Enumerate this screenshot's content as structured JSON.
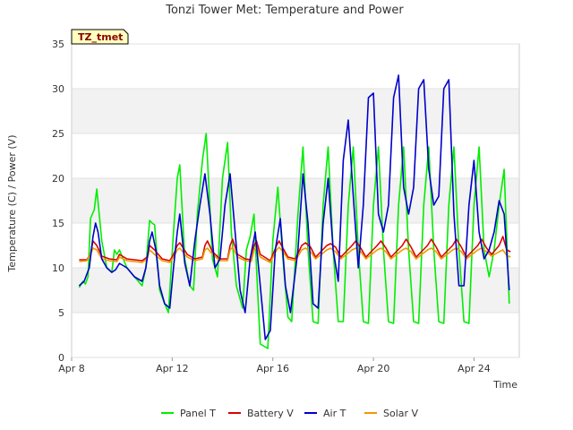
{
  "chart_data": {
    "type": "line",
    "title": "Tonzi Tower Met: Temperature and Power",
    "badge": "TZ_tmet",
    "xlabel": "Time",
    "ylabel": "Temperature (C) / Power (V)",
    "xlim": [
      8,
      25.8
    ],
    "ylim": [
      0,
      35
    ],
    "yticks": [
      0,
      5,
      10,
      15,
      20,
      25,
      30,
      35
    ],
    "xticks": [
      {
        "value": 8,
        "label": "Apr 8"
      },
      {
        "value": 12,
        "label": "Apr 12"
      },
      {
        "value": 16,
        "label": "Apr 16"
      },
      {
        "value": 20,
        "label": "Apr 20"
      },
      {
        "value": 24,
        "label": "Apr 24"
      }
    ],
    "grid": true,
    "legend_position": "bottom",
    "series": [
      {
        "name": "Panel T",
        "color": "#00ee00",
        "x": [
          8.3,
          8.45,
          8.55,
          8.65,
          8.75,
          8.9,
          9.0,
          9.2,
          9.4,
          9.6,
          9.7,
          9.8,
          9.9,
          10.2,
          10.5,
          10.8,
          10.95,
          11.1,
          11.2,
          11.3,
          11.5,
          11.7,
          11.85,
          12.05,
          12.2,
          12.3,
          12.5,
          12.7,
          12.85,
          13.0,
          13.2,
          13.35,
          13.6,
          13.8,
          14.0,
          14.2,
          14.35,
          14.55,
          14.8,
          14.95,
          15.1,
          15.25,
          15.35,
          15.5,
          15.8,
          16.0,
          16.2,
          16.4,
          16.6,
          16.75,
          17.0,
          17.2,
          17.4,
          17.6,
          17.8,
          18.0,
          18.2,
          18.4,
          18.6,
          18.8,
          19.0,
          19.2,
          19.4,
          19.6,
          19.8,
          20.0,
          20.2,
          20.4,
          20.6,
          20.8,
          21.0,
          21.2,
          21.4,
          21.6,
          21.8,
          22.0,
          22.2,
          22.4,
          22.6,
          22.8,
          23.0,
          23.2,
          23.4,
          23.6,
          23.8,
          24.0,
          24.2,
          24.4,
          24.6,
          24.8,
          25.0,
          25.2,
          25.4
        ],
        "values": [
          7.8,
          8.5,
          8.2,
          9.0,
          15.5,
          16.5,
          18.8,
          13.0,
          10.0,
          9.5,
          12.0,
          11.5,
          12.0,
          10.0,
          9.0,
          8.0,
          10.0,
          15.3,
          15.0,
          14.8,
          7.5,
          6.0,
          5.0,
          14.0,
          20.0,
          21.5,
          11.0,
          8.0,
          7.5,
          16.0,
          22.0,
          25.0,
          11.0,
          9.0,
          20.0,
          24.0,
          14.0,
          8.0,
          5.5,
          12.0,
          13.5,
          16.0,
          10.0,
          1.5,
          1.0,
          13.0,
          19.0,
          11.0,
          4.5,
          4.0,
          16.0,
          23.5,
          12.0,
          4.0,
          3.8,
          17.0,
          23.5,
          12.0,
          4.0,
          4.0,
          17.0,
          23.5,
          12.0,
          4.0,
          3.8,
          17.0,
          23.5,
          12.0,
          4.0,
          3.8,
          17.0,
          23.5,
          12.0,
          4.0,
          3.8,
          17.0,
          23.5,
          12.0,
          4.0,
          3.8,
          17.0,
          23.5,
          12.0,
          4.0,
          3.8,
          17.0,
          23.5,
          12.0,
          9.0,
          12.0,
          17.0,
          21.0,
          6.0
        ]
      },
      {
        "name": "Battery V",
        "color": "#dd0000",
        "x": [
          8.3,
          8.6,
          8.75,
          8.85,
          9.0,
          9.2,
          9.5,
          9.8,
          9.9,
          10.2,
          10.5,
          10.8,
          11.0,
          11.1,
          11.3,
          11.6,
          11.9,
          12.05,
          12.2,
          12.3,
          12.6,
          12.9,
          13.2,
          13.3,
          13.4,
          13.6,
          13.9,
          14.2,
          14.3,
          14.4,
          14.6,
          14.9,
          15.15,
          15.25,
          15.35,
          15.5,
          15.9,
          16.15,
          16.25,
          16.4,
          16.6,
          16.9,
          17.15,
          17.3,
          17.5,
          17.7,
          18.15,
          18.3,
          18.5,
          18.7,
          19.15,
          19.3,
          19.5,
          19.7,
          20.15,
          20.3,
          20.5,
          20.7,
          21.15,
          21.3,
          21.5,
          21.7,
          22.15,
          22.3,
          22.5,
          22.7,
          23.15,
          23.3,
          23.5,
          23.7,
          24.15,
          24.3,
          24.5,
          24.7,
          25.0,
          25.15,
          25.3,
          25.45
        ],
        "values": [
          10.9,
          10.9,
          11.5,
          13.0,
          12.5,
          11.3,
          11.0,
          10.9,
          11.5,
          11.0,
          10.9,
          10.8,
          11.2,
          12.5,
          12.0,
          11.0,
          10.8,
          11.5,
          12.5,
          12.8,
          11.5,
          11.0,
          11.2,
          12.5,
          13.0,
          11.8,
          11.0,
          11.0,
          12.5,
          13.2,
          11.5,
          11.0,
          10.9,
          12.5,
          13.0,
          11.5,
          10.8,
          12.5,
          13.0,
          12.2,
          11.2,
          11.0,
          12.5,
          12.8,
          12.3,
          11.2,
          12.5,
          12.7,
          12.3,
          11.2,
          12.5,
          13.0,
          12.2,
          11.2,
          12.5,
          13.0,
          12.2,
          11.2,
          12.5,
          13.2,
          12.3,
          11.2,
          12.5,
          13.2,
          12.3,
          11.2,
          12.5,
          13.2,
          12.3,
          11.2,
          12.5,
          13.2,
          12.2,
          11.5,
          12.5,
          13.5,
          12.0,
          11.8
        ]
      },
      {
        "name": "Air T",
        "color": "#0000cc",
        "x": [
          8.3,
          8.5,
          8.7,
          8.85,
          8.95,
          9.05,
          9.2,
          9.4,
          9.6,
          9.75,
          9.9,
          10.2,
          10.5,
          10.8,
          10.95,
          11.1,
          11.2,
          11.35,
          11.5,
          11.7,
          11.9,
          12.05,
          12.2,
          12.3,
          12.5,
          12.7,
          12.9,
          13.1,
          13.3,
          13.5,
          13.7,
          13.9,
          14.1,
          14.3,
          14.5,
          14.7,
          14.9,
          15.1,
          15.3,
          15.5,
          15.7,
          15.9,
          16.1,
          16.3,
          16.5,
          16.7,
          17.0,
          17.2,
          17.4,
          17.6,
          17.8,
          18.0,
          18.2,
          18.4,
          18.6,
          18.8,
          19.0,
          19.2,
          19.4,
          19.6,
          19.8,
          20.0,
          20.2,
          20.4,
          20.6,
          20.8,
          21.0,
          21.2,
          21.4,
          21.6,
          21.8,
          22.0,
          22.2,
          22.4,
          22.6,
          22.8,
          23.0,
          23.2,
          23.4,
          23.6,
          23.8,
          24.0,
          24.2,
          24.4,
          24.6,
          24.8,
          25.0,
          25.2,
          25.4
        ],
        "values": [
          8.0,
          8.5,
          10.0,
          13.5,
          15.0,
          14.0,
          11.0,
          10.0,
          9.5,
          9.8,
          10.5,
          10.0,
          9.0,
          8.5,
          10.0,
          13.0,
          14.0,
          12.0,
          8.0,
          6.0,
          5.5,
          10.0,
          14.0,
          16.0,
          10.5,
          8.0,
          13.0,
          17.0,
          20.5,
          16.0,
          10.0,
          11.0,
          17.0,
          20.5,
          14.0,
          7.5,
          5.0,
          11.0,
          14.0,
          8.0,
          2.0,
          3.0,
          12.0,
          15.5,
          8.0,
          5.0,
          12.0,
          20.5,
          15.0,
          6.0,
          5.5,
          15.0,
          20.0,
          12.0,
          8.5,
          22.0,
          26.5,
          18.0,
          10.0,
          17.0,
          29.0,
          29.5,
          16.0,
          14.0,
          17.0,
          29.0,
          31.5,
          19.0,
          16.0,
          19.0,
          30.0,
          31.0,
          21.0,
          17.0,
          18.0,
          30.0,
          31.0,
          16.0,
          8.0,
          8.0,
          17.0,
          22.0,
          14.0,
          11.0,
          12.0,
          14.0,
          17.5,
          16.0,
          7.5
        ]
      },
      {
        "name": "Solar V",
        "color": "#ee9900",
        "x": [
          8.3,
          8.6,
          8.75,
          8.85,
          9.0,
          9.2,
          9.5,
          9.8,
          9.9,
          10.2,
          10.5,
          10.8,
          11.0,
          11.1,
          11.3,
          11.6,
          11.9,
          12.05,
          12.2,
          12.3,
          12.6,
          12.9,
          13.2,
          13.3,
          13.4,
          13.6,
          13.9,
          14.2,
          14.3,
          14.4,
          14.6,
          14.9,
          15.15,
          15.25,
          15.35,
          15.5,
          15.9,
          16.15,
          16.25,
          16.4,
          16.6,
          16.9,
          17.15,
          17.3,
          17.5,
          17.7,
          18.15,
          18.3,
          18.5,
          18.7,
          19.15,
          19.3,
          19.5,
          19.7,
          20.15,
          20.3,
          20.5,
          20.7,
          21.15,
          21.3,
          21.5,
          21.7,
          22.15,
          22.3,
          22.5,
          22.7,
          23.15,
          23.3,
          23.5,
          23.7,
          24.15,
          24.3,
          24.5,
          24.7,
          25.0,
          25.15,
          25.3,
          25.45
        ],
        "values": [
          10.7,
          10.8,
          11.5,
          12.2,
          12.0,
          11.0,
          10.8,
          10.7,
          11.2,
          10.8,
          10.7,
          10.6,
          11.0,
          12.0,
          11.5,
          10.8,
          10.6,
          11.2,
          12.0,
          12.2,
          11.2,
          10.8,
          11.0,
          12.0,
          12.2,
          11.5,
          10.8,
          10.8,
          12.0,
          12.3,
          11.2,
          10.8,
          10.7,
          12.0,
          12.3,
          11.2,
          10.6,
          12.0,
          12.3,
          11.8,
          11.0,
          10.8,
          12.0,
          12.2,
          11.8,
          11.0,
          12.0,
          12.2,
          11.8,
          11.0,
          12.0,
          12.2,
          11.8,
          11.0,
          12.0,
          12.2,
          11.8,
          11.0,
          12.0,
          12.2,
          11.8,
          11.0,
          12.0,
          12.2,
          11.8,
          11.0,
          12.0,
          12.2,
          11.8,
          11.0,
          12.0,
          12.2,
          11.8,
          11.3,
          11.8,
          12.0,
          11.4,
          11.2
        ]
      }
    ]
  }
}
